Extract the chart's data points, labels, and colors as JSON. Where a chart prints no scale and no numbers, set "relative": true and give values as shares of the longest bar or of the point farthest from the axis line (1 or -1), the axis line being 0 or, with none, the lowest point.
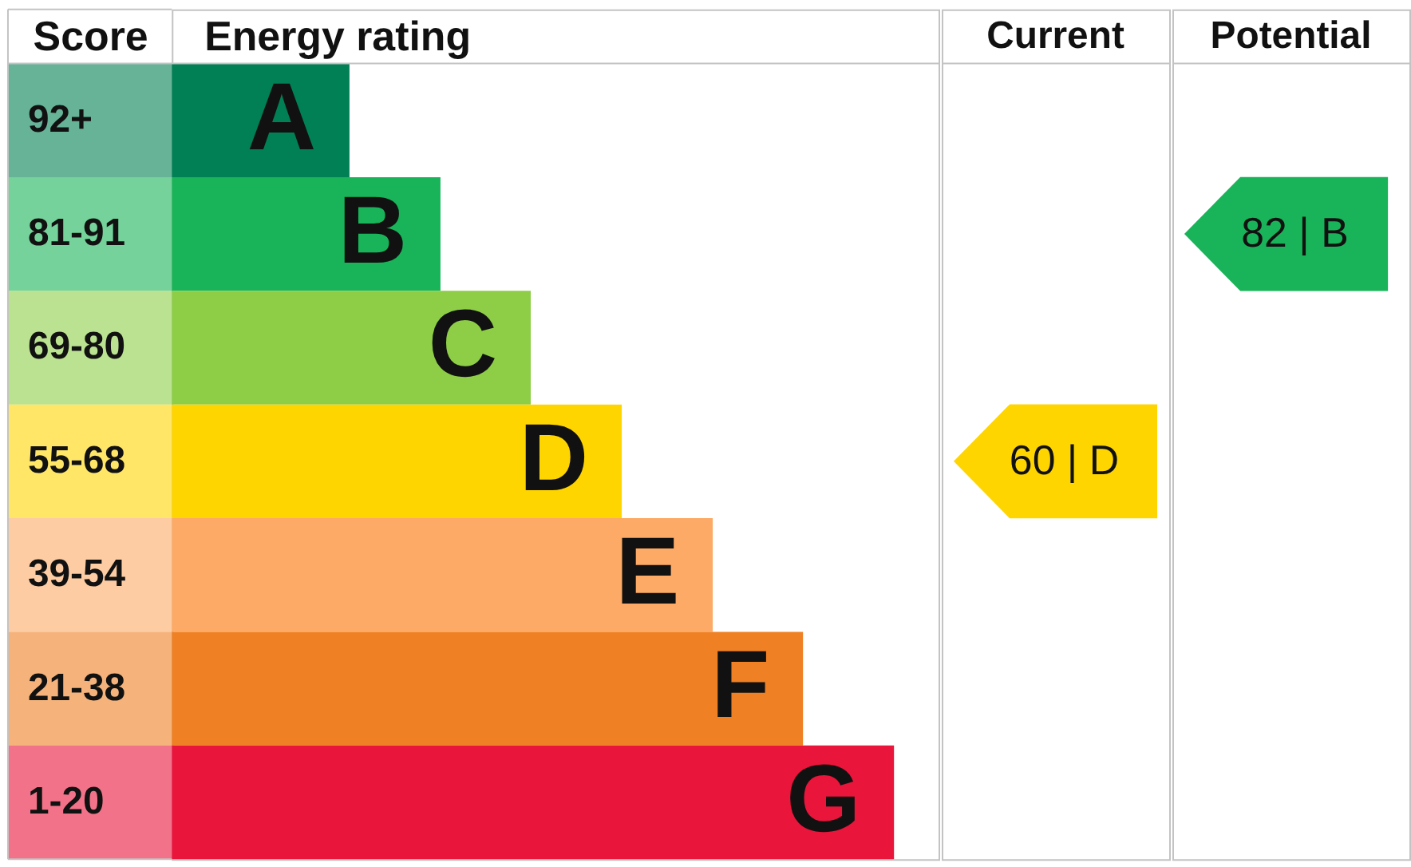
{
  "chart_data": [
    {
      "type": "bar",
      "orientation": "horizontal",
      "relative": true,
      "ylabel": "Score",
      "xlabel": "Energy rating",
      "categories": [
        "92+",
        "81-91",
        "69-80",
        "55-68",
        "39-54",
        "21-38",
        "1-20"
      ],
      "values": [
        0.246,
        0.372,
        0.497,
        0.623,
        0.749,
        0.874,
        1
      ],
      "colors": [
        "#008054",
        "#19b459",
        "#8dce46",
        "#ffd500",
        "#fcaa65",
        "#ef8023",
        "#e9153b"
      ],
      "annotations": [
        {
          "text": "A",
          "x": 0.246,
          "y": "92+"
        },
        {
          "text": "B",
          "x": 0.372,
          "y": "81-91"
        },
        {
          "text": "C",
          "x": 0.497,
          "y": "69-80"
        },
        {
          "text": "D",
          "x": 0.623,
          "y": "55-68"
        },
        {
          "text": "E",
          "x": 0.749,
          "y": "39-54"
        },
        {
          "text": "F",
          "x": 0.874,
          "y": "21-38"
        },
        {
          "text": "G",
          "x": 1,
          "y": "1-20"
        }
      ]
    },
    {
      "type": "other",
      "title": "Current",
      "colors": [
        "#ffd500"
      ],
      "annotations": [
        {
          "text": "60 | D",
          "y": "55-68"
        }
      ]
    },
    {
      "type": "other",
      "title": "Potential",
      "colors": [
        "#19b459"
      ],
      "annotations": [
        {
          "text": "82 | B",
          "y": "81-91"
        }
      ]
    }
  ]
}
